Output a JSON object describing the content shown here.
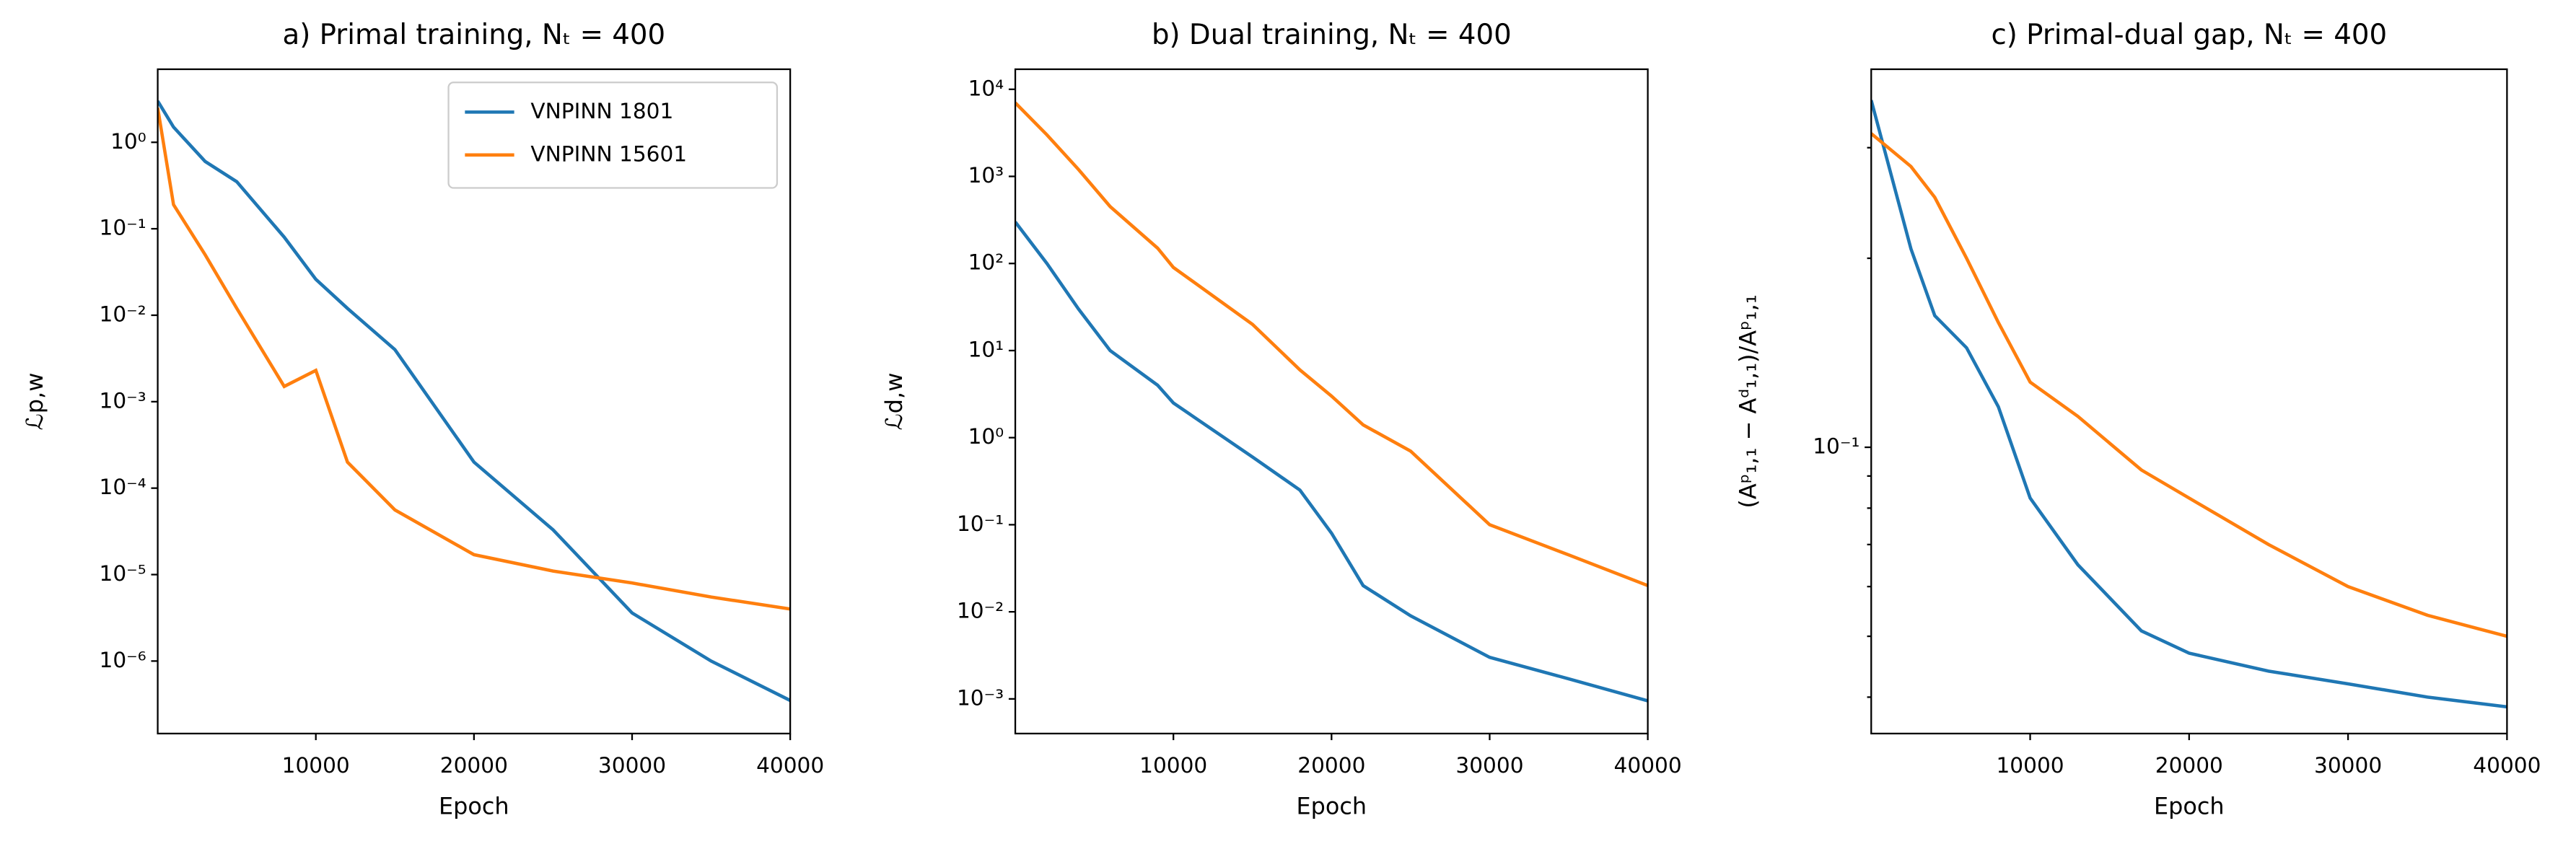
{
  "chart_data": [
    {
      "type": "line",
      "title": "a) Primal training, Nₜ = 400",
      "xlabel": "Epoch",
      "ylabel": "ℒp,w",
      "log_y": true,
      "legend": "upper right",
      "xlim": [
        0,
        40000
      ],
      "xticks": [
        10000,
        20000,
        30000,
        40000
      ],
      "ylim": [
        1.45e-07,
        7
      ],
      "yticks": [
        {
          "value": 1,
          "label": "10⁰"
        },
        {
          "value": 0.1,
          "label": "10⁻¹"
        },
        {
          "value": 0.01,
          "label": "10⁻²"
        },
        {
          "value": 0.001,
          "label": "10⁻³"
        },
        {
          "value": 0.0001,
          "label": "10⁻⁴"
        },
        {
          "value": 1e-05,
          "label": "10⁻⁵"
        },
        {
          "value": 1e-06,
          "label": "10⁻⁶"
        }
      ],
      "x": [
        0,
        1000,
        3000,
        5000,
        8000,
        10000,
        12000,
        15000,
        20000,
        25000,
        30000,
        35000,
        40000
      ],
      "series": [
        {
          "name": "VNPINN 1801",
          "color": "#1f77b4",
          "values": [
            3,
            1.5,
            0.6,
            0.35,
            0.08,
            0.026,
            0.012,
            0.004,
            0.0002,
            3.3e-05,
            3.6e-06,
            1e-06,
            3.5e-07
          ]
        },
        {
          "name": "VNPINN 15601",
          "color": "#ff7f0e",
          "values": [
            2.5,
            0.19,
            0.05,
            0.012,
            0.0015,
            0.0023,
            0.0002,
            5.6e-05,
            1.7e-05,
            1.1e-05,
            8e-06,
            5.5e-06,
            4e-06
          ]
        }
      ]
    },
    {
      "type": "line",
      "title": "b) Dual training, Nₜ = 400",
      "xlabel": "Epoch",
      "ylabel": "ℒd,w",
      "log_y": true,
      "xlim": [
        0,
        40000
      ],
      "xticks": [
        10000,
        20000,
        30000,
        40000
      ],
      "ylim": [
        0.0004,
        17000
      ],
      "yticks": [
        {
          "value": 10000,
          "label": "10⁴"
        },
        {
          "value": 1000,
          "label": "10³"
        },
        {
          "value": 100,
          "label": "10²"
        },
        {
          "value": 10,
          "label": "10¹"
        },
        {
          "value": 1,
          "label": "10⁰"
        },
        {
          "value": 0.1,
          "label": "10⁻¹"
        },
        {
          "value": 0.01,
          "label": "10⁻²"
        },
        {
          "value": 0.001,
          "label": "10⁻³"
        }
      ],
      "x": [
        0,
        2000,
        4000,
        6000,
        9000,
        10000,
        15000,
        18000,
        20000,
        22000,
        25000,
        30000,
        35000,
        40000
      ],
      "series": [
        {
          "name": "VNPINN 1801",
          "color": "#1f77b4",
          "values": [
            300,
            100,
            30,
            10,
            4,
            2.5,
            0.6,
            0.25,
            0.08,
            0.02,
            0.009,
            0.003,
            0.0017,
            0.00095
          ]
        },
        {
          "name": "VNPINN 15601",
          "color": "#ff7f0e",
          "values": [
            7000,
            3000,
            1200,
            450,
            150,
            90,
            20,
            6,
            3,
            1.4,
            0.7,
            0.1,
            0.045,
            0.02
          ]
        }
      ]
    },
    {
      "type": "line",
      "title": "c) Primal-dual gap, Nₜ = 400",
      "xlabel": "Epoch",
      "ylabel": "(Aᵖ₁,₁ − Aᵈ₁,₁)/Aᵖ₁,₁",
      "log_y": true,
      "xlim": [
        0,
        40000
      ],
      "xticks": [
        10000,
        20000,
        30000,
        40000
      ],
      "ylim": [
        0.035,
        0.4
      ],
      "yticks": [
        {
          "value": 0.1,
          "label": "10⁻¹"
        }
      ],
      "yminorticks": [
        0.04,
        0.05,
        0.06,
        0.07,
        0.08,
        0.09,
        0.2,
        0.3
      ],
      "x": [
        0,
        2500,
        4000,
        6000,
        8000,
        10000,
        13000,
        17000,
        20000,
        25000,
        30000,
        35000,
        40000
      ],
      "series": [
        {
          "name": "VNPINN 1801",
          "color": "#1f77b4",
          "values": [
            0.357,
            0.207,
            0.162,
            0.144,
            0.116,
            0.083,
            0.065,
            0.051,
            0.047,
            0.044,
            0.042,
            0.04,
            0.0386
          ]
        },
        {
          "name": "VNPINN 15601",
          "color": "#ff7f0e",
          "values": [
            0.316,
            0.28,
            0.25,
            0.2,
            0.158,
            0.127,
            0.112,
            0.092,
            0.083,
            0.07,
            0.06,
            0.054,
            0.05
          ]
        }
      ]
    }
  ]
}
